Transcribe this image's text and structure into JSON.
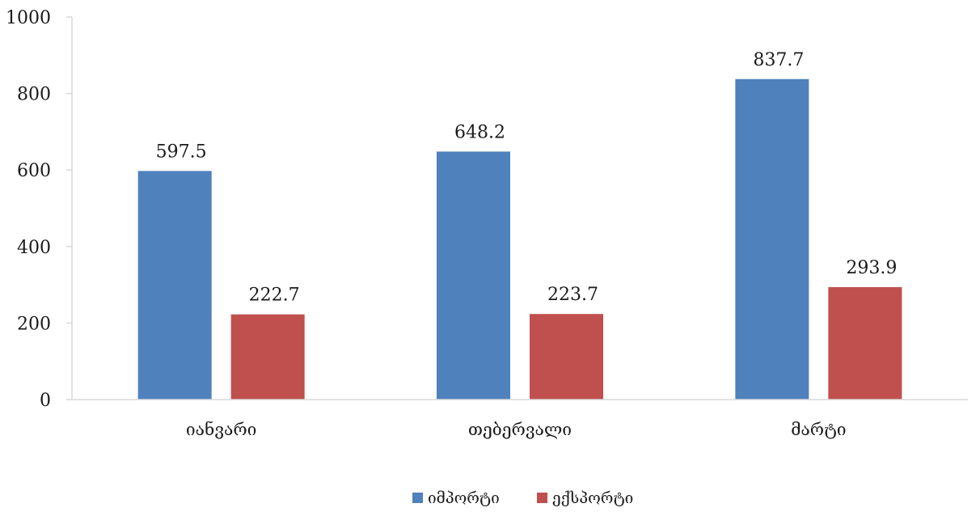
{
  "chart_data": {
    "type": "bar",
    "categories": [
      "იანვარი",
      "თებერვალი",
      "მარტი"
    ],
    "series": [
      {
        "name": "იმპორტი",
        "color": "#4f81bd",
        "values": [
          597.5,
          648.2,
          837.7
        ]
      },
      {
        "name": "ექსპორტი",
        "color": "#c0504d",
        "values": [
          222.7,
          223.7,
          293.9
        ]
      }
    ],
    "data_labels": [
      [
        "597.5",
        "648.2",
        "837.7"
      ],
      [
        "222.7",
        "223.7",
        "293.9"
      ]
    ],
    "ylim": [
      0,
      1000
    ],
    "yticks": [
      0,
      200,
      400,
      600,
      800,
      1000
    ],
    "title": "",
    "xlabel": "",
    "ylabel": "",
    "grid": false,
    "legend": "bottom-center"
  }
}
